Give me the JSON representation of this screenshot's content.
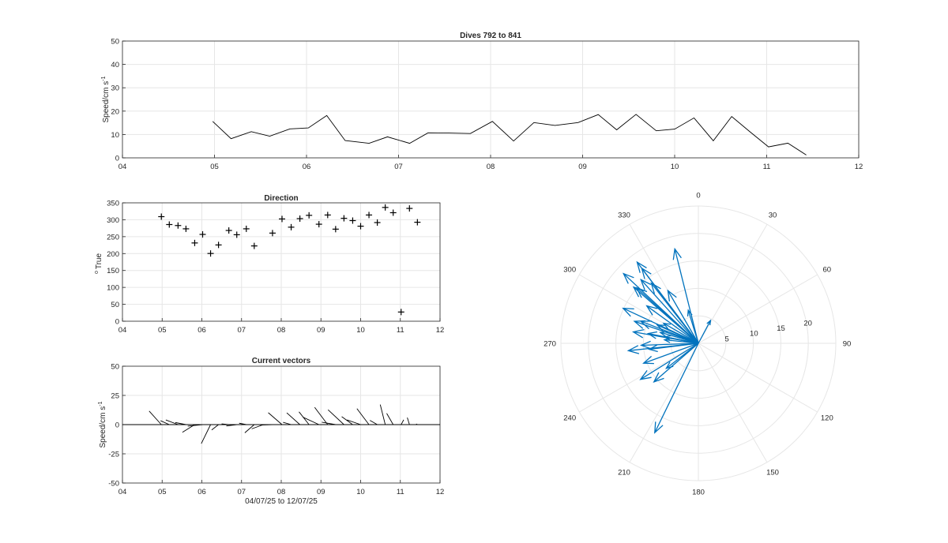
{
  "figure": {
    "top_title": "Dives 792 to 841",
    "dir_title": "Direction",
    "vec_title": "Current vectors",
    "speed_ylabel_main": "Speed/cm s",
    "speed_ylabel_sup": "-1",
    "dir_ylabel_deg": "o",
    "dir_ylabel_text": "True",
    "vec_xlabel": "04/07/25 to 12/07/25"
  },
  "chart_data": [
    {
      "id": "speed",
      "type": "line",
      "title": "Dives 792 to 841",
      "ylabel": "Speed/cm s-1",
      "xlim": [
        4,
        12
      ],
      "ylim": [
        0,
        50
      ],
      "xticks": [
        "04",
        "05",
        "06",
        "07",
        "08",
        "09",
        "10",
        "11",
        "12"
      ],
      "yticks": [
        "0",
        "10",
        "20",
        "30",
        "40",
        "50"
      ],
      "grid": true,
      "x": [
        4.98,
        5.18,
        5.4,
        5.6,
        5.82,
        6.02,
        6.22,
        6.42,
        6.68,
        6.88,
        7.12,
        7.32,
        7.55,
        7.78,
        8.02,
        8.25,
        8.47,
        8.7,
        8.95,
        9.17,
        9.37,
        9.58,
        9.8,
        10.0,
        10.21,
        10.42,
        10.62,
        10.82,
        11.02,
        11.23,
        11.43
      ],
      "values": [
        15.6,
        8.2,
        11.2,
        9.3,
        12.4,
        12.8,
        18.1,
        7.4,
        6.2,
        9.0,
        6.2,
        10.7,
        10.6,
        10.4,
        15.6,
        7.2,
        15.1,
        13.9,
        15.1,
        18.5,
        12.0,
        18.6,
        11.6,
        12.3,
        17.1,
        7.3,
        17.7,
        11.1,
        4.7,
        6.3,
        1.2
      ]
    },
    {
      "id": "direction",
      "type": "scatter",
      "title": "Direction",
      "ylabel": "o True",
      "xlim": [
        4,
        12
      ],
      "ylim": [
        0,
        360
      ],
      "xticks": [
        "04",
        "05",
        "06",
        "07",
        "08",
        "09",
        "10",
        "11",
        "12"
      ],
      "yticks": [
        "0",
        "50",
        "100",
        "150",
        "200",
        "250",
        "300",
        "350"
      ],
      "grid": true,
      "marker": "+",
      "x": [
        4.98,
        5.18,
        5.4,
        5.6,
        5.82,
        6.02,
        6.22,
        6.42,
        6.68,
        6.88,
        7.12,
        7.32,
        7.78,
        8.02,
        8.25,
        8.47,
        8.7,
        8.95,
        9.17,
        9.37,
        9.58,
        9.8,
        10.0,
        10.21,
        10.42,
        10.62,
        10.82,
        11.02,
        11.23,
        11.43
      ],
      "values": [
        318,
        294,
        291,
        281,
        238,
        264,
        206,
        232,
        276,
        263,
        281,
        229,
        268,
        311,
        286,
        312,
        322,
        295,
        323,
        280,
        313,
        306,
        289,
        323,
        300,
        346,
        330,
        28,
        343,
        301
      ]
    },
    {
      "id": "vectors",
      "type": "line",
      "subtype": "stick-plot",
      "title": "Current vectors",
      "ylabel": "Speed/cm s-1",
      "xlabel": "04/07/25 to 12/07/25",
      "xlim": [
        4,
        12
      ],
      "ylim": [
        -50,
        50
      ],
      "xticks": [
        "04",
        "05",
        "06",
        "07",
        "08",
        "09",
        "10",
        "11",
        "12"
      ],
      "yticks": [
        "-50",
        "-25",
        "0",
        "25",
        "50"
      ],
      "grid": true,
      "x": [
        4.98,
        5.18,
        5.4,
        5.6,
        5.82,
        6.02,
        6.22,
        6.42,
        6.68,
        6.88,
        7.12,
        7.32,
        7.55,
        7.78,
        8.02,
        8.25,
        8.47,
        8.7,
        8.95,
        9.17,
        9.37,
        9.58,
        9.8,
        10.0,
        10.21,
        10.42,
        10.62,
        10.82,
        11.02,
        11.23,
        11.43
      ],
      "speed": [
        15.6,
        8.2,
        11.2,
        9.3,
        12.4,
        12.8,
        18.1,
        7.4,
        6.2,
        9.0,
        6.2,
        10.7,
        10.6,
        10.4,
        15.6,
        7.2,
        15.1,
        13.9,
        15.1,
        18.5,
        12.0,
        18.6,
        11.6,
        12.3,
        17.1,
        7.3,
        17.7,
        11.1,
        4.7,
        6.3,
        1.2
      ],
      "direction_deg": [
        318,
        294,
        291,
        281,
        238,
        264,
        206,
        232,
        276,
        263,
        281,
        229,
        250,
        268,
        311,
        286,
        312,
        322,
        295,
        323,
        280,
        313,
        306,
        289,
        323,
        300,
        346,
        330,
        28,
        343,
        301
      ]
    },
    {
      "id": "compass",
      "type": "scatter",
      "subtype": "polar-compass",
      "rticks": [
        "5",
        "10",
        "15",
        "20"
      ],
      "rlim": [
        0,
        25
      ],
      "angle_ticks": [
        "0",
        "30",
        "60",
        "90",
        "120",
        "150",
        "180",
        "210",
        "240",
        "270",
        "300",
        "330"
      ],
      "grid": true,
      "color": "#0072BD",
      "speed": [
        15.6,
        8.2,
        11.2,
        9.3,
        12.4,
        12.8,
        18.1,
        7.4,
        6.2,
        9.0,
        6.2,
        10.7,
        10.6,
        10.4,
        15.6,
        7.2,
        15.1,
        13.9,
        15.1,
        18.5,
        12.0,
        18.6,
        11.6,
        12.3,
        17.1,
        7.3,
        17.7,
        11.1,
        4.7,
        6.3,
        1.2
      ],
      "direction_deg": [
        318,
        294,
        291,
        281,
        238,
        264,
        206,
        232,
        276,
        263,
        281,
        229,
        250,
        268,
        311,
        286,
        312,
        322,
        295,
        323,
        280,
        313,
        306,
        289,
        323,
        300,
        346,
        330,
        28,
        343,
        301
      ]
    }
  ],
  "colors": {
    "axis": "#262626",
    "grid": "#e6e6e6",
    "line": "#000000",
    "compass": "#0072BD"
  }
}
